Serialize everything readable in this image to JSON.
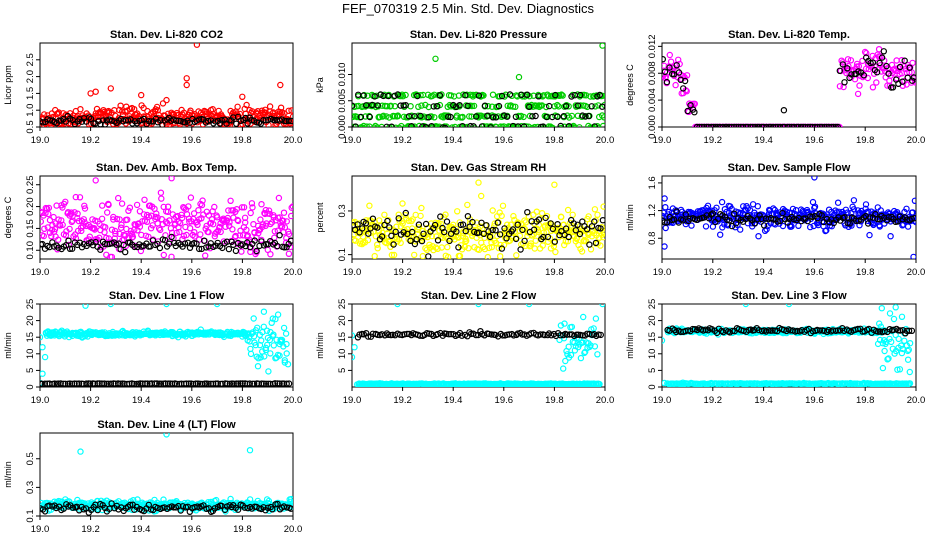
{
  "main_title": "FEF_070319  2.5 Min. Std. Dev. Diagnostics",
  "colors": {
    "black_series": "#000000",
    "red": "#ff0000",
    "green": "#00cc00",
    "magenta": "#ff00ff",
    "yellow": "#ffff00",
    "blue": "#0000ff",
    "cyan": "#00ffff"
  },
  "chart_data": [
    {
      "type": "scatter",
      "title": "Stan. Dev. Li-820 CO2",
      "ylabel": "Licor ppm",
      "xlim": [
        19.0,
        20.0
      ],
      "ylim": [
        0.5,
        3.0
      ],
      "xticks": [
        "19.0",
        "19.2",
        "19.4",
        "19.6",
        "19.8",
        "20.0"
      ],
      "yticks": [
        "0.5",
        "1.0",
        "1.5",
        "2.0",
        "2.5"
      ],
      "series": [
        {
          "color": "red",
          "x_range": [
            19.0,
            20.0
          ],
          "count": 320,
          "base": 0.8,
          "spread": 0.35,
          "outliers": [
            [
              19.62,
              2.95
            ],
            [
              19.58,
              1.95
            ],
            [
              19.58,
              1.75
            ],
            [
              19.22,
              1.55
            ],
            [
              19.2,
              1.5
            ],
            [
              19.28,
              1.65
            ],
            [
              19.4,
              1.45
            ],
            [
              19.5,
              1.3
            ],
            [
              19.95,
              1.75
            ]
          ]
        },
        {
          "color": "black_series",
          "x_range": [
            19.0,
            20.0
          ],
          "count": 110,
          "base": 0.68,
          "spread": 0.1,
          "outliers": []
        }
      ]
    },
    {
      "type": "scatter",
      "title": "Stan. Dev. Li-820 Pressure",
      "ylabel": "kPa",
      "xlim": [
        19.0,
        20.0
      ],
      "ylim": [
        0.0,
        0.016
      ],
      "xticks": [
        "19.0",
        "19.2",
        "19.4",
        "19.6",
        "19.8",
        "20.0"
      ],
      "yticks": [
        "0.000",
        "0.005",
        "0.010"
      ],
      "series": [
        {
          "color": "green",
          "x_range": [
            19.0,
            20.0
          ],
          "count": 360,
          "base": 0.003,
          "spread": 0.003,
          "levels": [
            0.0,
            0.002,
            0.004,
            0.006
          ],
          "outliers": [
            [
              19.33,
              0.013
            ],
            [
              19.66,
              0.0095
            ],
            [
              19.99,
              0.0155
            ]
          ]
        },
        {
          "color": "black_series",
          "x_range": [
            19.0,
            20.0
          ],
          "count": 90,
          "base": 0.0035,
          "spread": 0.003,
          "levels": [
            0.0,
            0.002,
            0.004,
            0.006
          ],
          "outliers": []
        }
      ]
    },
    {
      "type": "scatter",
      "title": "Stan. Dev. Li-820 Temp.",
      "ylabel": "degrees C",
      "xlim": [
        19.0,
        20.0
      ],
      "ylim": [
        0.0,
        0.0125
      ],
      "xticks": [
        "19.0",
        "19.2",
        "19.4",
        "19.6",
        "19.8",
        "20.0"
      ],
      "yticks": [
        "0.000",
        "0.004",
        "0.008",
        "0.012"
      ],
      "series": [
        {
          "color": "magenta",
          "x_range": [
            19.0,
            20.0
          ],
          "count": 300,
          "temp_profile": true,
          "outliers": []
        },
        {
          "color": "black_series",
          "x_range": [
            19.0,
            20.0
          ],
          "count": 110,
          "temp_profile": true,
          "outliers": [
            [
              19.48,
              0.0025
            ]
          ]
        }
      ]
    },
    {
      "type": "scatter",
      "title": "Stan. Dev. Amb. Box Temp.",
      "ylabel": "degrees C",
      "xlim": [
        19.0,
        20.0
      ],
      "ylim": [
        0.08,
        0.27
      ],
      "xticks": [
        "19.0",
        "19.2",
        "19.4",
        "19.6",
        "19.8",
        "20.0"
      ],
      "yticks": [
        "0.10",
        "0.15",
        "0.20",
        "0.25"
      ],
      "series": [
        {
          "color": "magenta",
          "x_range": [
            19.0,
            20.0
          ],
          "count": 360,
          "base": 0.155,
          "spread": 0.065,
          "outliers": [
            [
              19.52,
              0.265
            ],
            [
              19.22,
              0.26
            ]
          ]
        },
        {
          "color": "black_series",
          "x_range": [
            19.0,
            20.0
          ],
          "count": 110,
          "base": 0.112,
          "spread": 0.015,
          "outliers": []
        }
      ]
    },
    {
      "type": "scatter",
      "title": "Stan. Dev. Gas Stream RH",
      "ylabel": "percent",
      "xlim": [
        19.0,
        20.0
      ],
      "ylim": [
        0.08,
        0.46
      ],
      "xticks": [
        "19.0",
        "19.2",
        "19.4",
        "19.6",
        "19.8",
        "20.0"
      ],
      "yticks": [
        "0.1",
        "0.3"
      ],
      "series": [
        {
          "color": "yellow",
          "x_range": [
            19.0,
            20.0
          ],
          "count": 380,
          "base": 0.2,
          "spread": 0.11,
          "outliers": [
            [
              19.5,
              0.43
            ],
            [
              19.8,
              0.42
            ]
          ]
        },
        {
          "color": "black_series",
          "x_range": [
            19.0,
            20.0
          ],
          "count": 110,
          "base": 0.2,
          "spread": 0.08,
          "outliers": []
        }
      ]
    },
    {
      "type": "scatter",
      "title": "Stan. Dev. Sample Flow",
      "ylabel": "ml/min",
      "xlim": [
        19.0,
        20.0
      ],
      "ylim": [
        0.5,
        1.7
      ],
      "xticks": [
        "19.0",
        "19.2",
        "19.4",
        "19.6",
        "19.8",
        "20.0"
      ],
      "yticks": [
        "0.8",
        "1.2",
        "1.6"
      ],
      "series": [
        {
          "color": "blue",
          "x_range": [
            19.0,
            20.0
          ],
          "count": 380,
          "base": 1.12,
          "spread": 0.18,
          "outliers": [
            [
              19.6,
              1.68
            ],
            [
              19.01,
              0.68
            ],
            [
              19.99,
              0.53
            ],
            [
              19.38,
              0.83
            ],
            [
              19.9,
              0.83
            ]
          ]
        },
        {
          "color": "black_series",
          "x_range": [
            19.0,
            20.0
          ],
          "count": 110,
          "base": 1.08,
          "spread": 0.1,
          "outliers": []
        }
      ]
    },
    {
      "type": "scatter",
      "title": "Stan. Dev. Line 1 Flow",
      "ylabel": "ml/min",
      "xlim": [
        19.0,
        20.0
      ],
      "ylim": [
        0,
        25
      ],
      "xticks": [
        "19.0",
        "19.2",
        "19.4",
        "19.6",
        "19.8",
        "20.0"
      ],
      "yticks": [
        "0",
        "5",
        "10",
        "15",
        "20",
        "25"
      ],
      "series": [
        {
          "color": "cyan",
          "x_range": [
            19.02,
            19.82
          ],
          "count": 300,
          "base": 16,
          "spread": 0.8,
          "outliers": [
            [
              19.28,
              25
            ],
            [
              19.5,
              25
            ],
            [
              19.7,
              25
            ],
            [
              19.18,
              24.5
            ]
          ]
        },
        {
          "color": "cyan",
          "x_range": [
            19.82,
            19.98
          ],
          "count": 60,
          "base": 13.5,
          "spread": 9,
          "outliers": [
            [
              19.0,
              15
            ],
            [
              19.01,
              12
            ],
            [
              19.02,
              9
            ],
            [
              19.01,
              4
            ],
            [
              19.0,
              1.2
            ]
          ]
        },
        {
          "color": "black_series",
          "x_range": [
            19.0,
            19.99
          ],
          "count": 110,
          "base": 1.0,
          "spread": 0.1,
          "outliers": []
        }
      ]
    },
    {
      "type": "scatter",
      "title": "Stan. Dev. Line 2 Flow",
      "ylabel": "ml/min",
      "xlim": [
        19.0,
        20.0
      ],
      "ylim": [
        0,
        25
      ],
      "xticks": [
        "19.0",
        "19.2",
        "19.4",
        "19.6",
        "19.8",
        "20.0"
      ],
      "yticks": [
        "5",
        "10",
        "15",
        "20",
        "25"
      ],
      "series": [
        {
          "color": "cyan",
          "x_range": [
            19.02,
            19.98
          ],
          "count": 300,
          "base": 0.9,
          "spread": 0.2,
          "outliers": [
            [
              19.0,
              15.5
            ],
            [
              19.01,
              12
            ],
            [
              19.0,
              9
            ],
            [
              19.18,
              25
            ],
            [
              19.5,
              25
            ],
            [
              19.7,
              25
            ],
            [
              19.99,
              25
            ]
          ]
        },
        {
          "color": "cyan",
          "x_range": [
            19.82,
            19.97
          ],
          "count": 40,
          "base": 13,
          "spread": 8,
          "outliers": []
        },
        {
          "color": "black_series",
          "x_range": [
            19.02,
            19.99
          ],
          "count": 110,
          "base": 15.8,
          "spread": 0.6,
          "outliers": []
        }
      ]
    },
    {
      "type": "scatter",
      "title": "Stan. Dev. Line 3 Flow",
      "ylabel": "ml/min",
      "xlim": [
        19.0,
        20.0
      ],
      "ylim": [
        0,
        25
      ],
      "xticks": [
        "19.0",
        "19.2",
        "19.4",
        "19.6",
        "19.8",
        "20.0"
      ],
      "yticks": [
        "0",
        "5",
        "10",
        "15",
        "20",
        "25"
      ],
      "series": [
        {
          "color": "cyan",
          "x_range": [
            19.02,
            19.88
          ],
          "count": 300,
          "base": 16.8,
          "spread": 0.7,
          "outliers": [
            [
              19.33,
              25
            ],
            [
              19.5,
              25
            ],
            [
              19.92,
              24
            ],
            [
              19.01,
              1.2
            ],
            [
              19.0,
              14
            ]
          ]
        },
        {
          "color": "cyan",
          "x_range": [
            19.02,
            19.98
          ],
          "count": 220,
          "base": 1.0,
          "spread": 0.2,
          "outliers": []
        },
        {
          "color": "cyan",
          "x_range": [
            19.85,
            19.98
          ],
          "count": 40,
          "base": 13,
          "spread": 8,
          "outliers": []
        },
        {
          "color": "black_series",
          "x_range": [
            19.02,
            19.99
          ],
          "count": 110,
          "base": 17,
          "spread": 0.8,
          "outliers": []
        }
      ]
    },
    {
      "type": "scatter",
      "title": "Stan. Dev. Line 4 (LT) Flow",
      "ylabel": "ml/min",
      "xlim": [
        19.0,
        20.0
      ],
      "ylim": [
        0.1,
        0.68
      ],
      "xticks": [
        "19.0",
        "19.2",
        "19.4",
        "19.6",
        "19.8",
        "20.0"
      ],
      "yticks": [
        "0.1",
        "0.3",
        "0.5"
      ],
      "series": [
        {
          "color": "cyan",
          "x_range": [
            19.0,
            20.0
          ],
          "count": 380,
          "base": 0.175,
          "spread": 0.035,
          "outliers": [
            [
              19.16,
              0.55
            ],
            [
              19.83,
              0.56
            ],
            [
              19.5,
              0.67
            ]
          ]
        },
        {
          "color": "black_series",
          "x_range": [
            19.0,
            20.0
          ],
          "count": 110,
          "base": 0.158,
          "spread": 0.03,
          "outliers": []
        }
      ]
    }
  ]
}
